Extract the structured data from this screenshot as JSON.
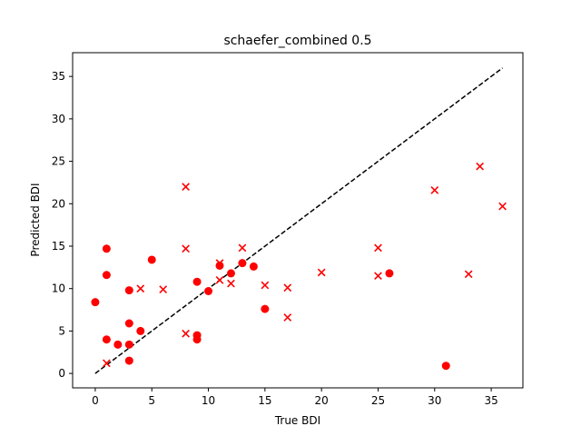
{
  "chart_data": {
    "type": "scatter",
    "title": "schaefer_combined 0.5",
    "xlabel": "True BDI",
    "ylabel": "Predicted BDI",
    "xlim": [
      -2,
      37.8
    ],
    "ylim": [
      -1.7,
      37.8
    ],
    "xticks": [
      0,
      5,
      10,
      15,
      20,
      25,
      30,
      35
    ],
    "yticks": [
      0,
      5,
      10,
      15,
      20,
      25,
      30,
      35
    ],
    "grid": false,
    "colors": {
      "points": "#ff0000",
      "reference": "#000000"
    },
    "reference_line": {
      "style": "dashed",
      "x": [
        0,
        36
      ],
      "y": [
        0,
        36
      ]
    },
    "series": [
      {
        "marker": "circle",
        "x": [
          0,
          1,
          1,
          1,
          2,
          3,
          3,
          3,
          3,
          4,
          5,
          9,
          9,
          9,
          10,
          11,
          12,
          13,
          14,
          15,
          26,
          31
        ],
        "y": [
          8.4,
          14.7,
          11.6,
          4.0,
          3.4,
          9.8,
          5.9,
          3.4,
          1.5,
          5.0,
          13.4,
          10.8,
          4.5,
          4.0,
          9.7,
          12.7,
          11.8,
          13.0,
          12.6,
          7.6,
          11.8,
          0.9
        ]
      },
      {
        "marker": "x",
        "x": [
          1,
          4,
          6,
          8,
          8,
          8,
          11,
          11,
          12,
          13,
          15,
          17,
          17,
          20,
          25,
          25,
          30,
          33,
          34,
          36
        ],
        "y": [
          1.2,
          10.0,
          9.9,
          22.0,
          14.7,
          4.7,
          13.0,
          11.0,
          10.6,
          14.8,
          10.4,
          10.1,
          6.6,
          11.9,
          14.8,
          11.5,
          21.6,
          11.7,
          24.4,
          19.7
        ]
      }
    ]
  }
}
